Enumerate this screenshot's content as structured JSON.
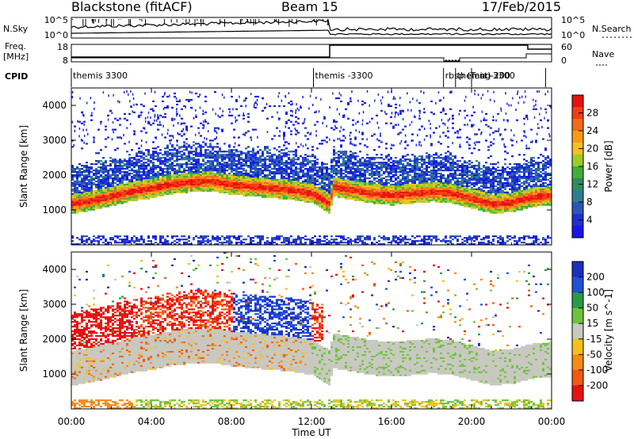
{
  "header": {
    "station": "Blackstone (fitACF)",
    "beam": "Beam 15",
    "date": "17/Feb/2015"
  },
  "top_panels": {
    "nsky_label": "N.Sky",
    "nsky_ticks": [
      "10^5",
      "10^0"
    ],
    "nsearch_label": "N.Search",
    "nsearch_ticks": [
      "10^5",
      "10^0"
    ],
    "freq_label_line1": "Freq.",
    "freq_label_line2": "[MHz]",
    "freq_ticks": [
      "18",
      "8"
    ],
    "nave_label": "Nave",
    "nave_ticks": [
      "60",
      "0"
    ],
    "cpid_label": "CPID",
    "cpid_segments": [
      {
        "label": "themis 3300",
        "start_hour": 0.0
      },
      {
        "label": "themis -3300",
        "start_hour": 12.1
      },
      {
        "label": "rbsp (Test)",
        "start_hour": 18.6
      },
      {
        "label": "themis -3300",
        "start_hour": 19.2
      },
      {
        "label": "ng-200",
        "start_hour": 20.0
      }
    ]
  },
  "x_axis": {
    "label": "Time UT",
    "ticks": [
      "00:00",
      "04:00",
      "08:00",
      "12:00",
      "16:00",
      "20:00",
      "00:00"
    ]
  },
  "power_colorbar": {
    "label": "Power [dB]",
    "ticks": [
      "28",
      "24",
      "20",
      "16",
      "12",
      "8",
      "4"
    ],
    "colors": [
      "#e81010",
      "#f23d14",
      "#f26a18",
      "#f79a18",
      "#f2c21b",
      "#9ccc2a",
      "#3fae3a",
      "#2e8c5f",
      "#2f7c93",
      "#2a56b8",
      "#2030d0",
      "#1616e6"
    ]
  },
  "velocity_colorbar": {
    "label": "Velocity [m s^-1]",
    "ticks": [
      "200",
      "100",
      "50",
      "15",
      "-15",
      "-50",
      "-100",
      "-200"
    ],
    "colors": [
      "#1a2ec0",
      "#2050d8",
      "#2a9a48",
      "#6cc43c",
      "#c8c8c0",
      "#f2c21b",
      "#f58a18",
      "#f25a14",
      "#e81010"
    ]
  },
  "chart_data": [
    {
      "type": "heatmap",
      "title": "Blackstone (fitACF) Beam 15",
      "xlabel": "Time UT",
      "ylabel": "Slant Range [km]",
      "xlim": [
        0,
        24
      ],
      "ylim": [
        0,
        4500
      ],
      "x_ticks": [
        "00:00",
        "04:00",
        "08:00",
        "12:00",
        "16:00",
        "20:00",
        "00:00"
      ],
      "y_ticks": [
        1000,
        2000,
        3000,
        4000
      ],
      "colorbar": "Power [dB]",
      "clim": [
        0,
        30
      ],
      "band": {
        "hours": [
          0,
          1,
          2,
          3,
          4,
          5,
          6,
          7,
          8,
          9,
          10,
          11,
          12,
          12.9,
          13,
          14,
          15,
          16,
          17,
          18,
          19,
          20,
          21,
          22,
          23,
          24
        ],
        "center_km": [
          1150,
          1250,
          1380,
          1520,
          1600,
          1720,
          1780,
          1800,
          1700,
          1650,
          1600,
          1550,
          1450,
          1150,
          1650,
          1550,
          1450,
          1400,
          1450,
          1500,
          1450,
          1300,
          1150,
          1200,
          1350,
          1400
        ]
      }
    },
    {
      "type": "heatmap",
      "title": "",
      "xlabel": "Time UT",
      "ylabel": "Slant Range [km]",
      "xlim": [
        0,
        24
      ],
      "ylim": [
        0,
        4500
      ],
      "x_ticks": [
        "00:00",
        "04:00",
        "08:00",
        "12:00",
        "16:00",
        "20:00",
        "00:00"
      ],
      "y_ticks": [
        1000,
        2000,
        3000,
        4000
      ],
      "colorbar": "Velocity [m s^-1]",
      "clim": [
        -200,
        200
      ]
    }
  ]
}
